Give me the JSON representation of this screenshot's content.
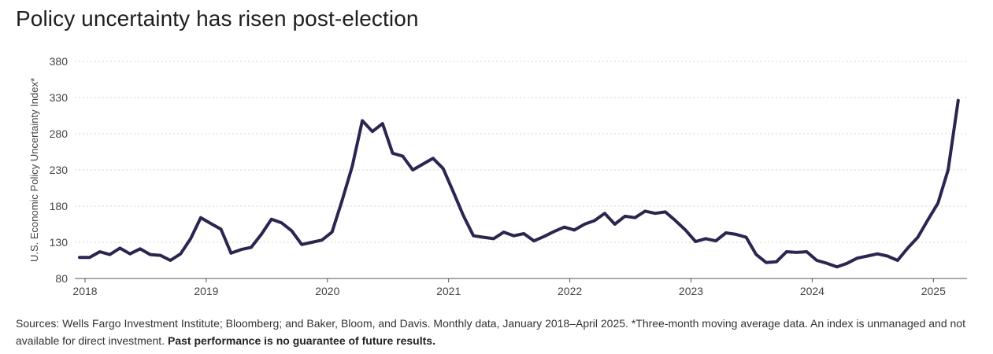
{
  "title": "Policy uncertainty has risen post-election",
  "footnote": {
    "text": "Sources: Wells Fargo Investment Institute; Bloomberg; and Baker, Bloom, and Davis. Monthly data, January 2018–April 2025. *Three-month moving average data. An index is unmanaged and not available for direct investment.",
    "bold": "Past performance is no guarantee of future results."
  },
  "colors": {
    "line": "#2b2550",
    "grid": "#d6d6d6",
    "axis": "#555555"
  },
  "chart_data": {
    "type": "line",
    "ylabel": "U.S. Economic Policy Uncertainty Index*",
    "xlabel": "",
    "ylim": [
      80,
      380
    ],
    "yticks": [
      80,
      130,
      180,
      230,
      280,
      330,
      380
    ],
    "grid": "horizontal-dashed",
    "xticks": [
      "2018",
      "2019",
      "2020",
      "2021",
      "2022",
      "2023",
      "2024",
      "2025"
    ],
    "x_start": "2018-01",
    "x_end": "2025-04",
    "series": [
      {
        "values": [
          109,
          109,
          117,
          113,
          122,
          114,
          121,
          113,
          112,
          105,
          114,
          135,
          164,
          156,
          148,
          115,
          120,
          123,
          141,
          162,
          157,
          146,
          127,
          130,
          133,
          144,
          188,
          235,
          298,
          283,
          294,
          253,
          249,
          230,
          238,
          246,
          232,
          200,
          167,
          139,
          137,
          135,
          144,
          139,
          142,
          132,
          138,
          145,
          151,
          147,
          155,
          160,
          170,
          155,
          166,
          164,
          173,
          170,
          172,
          160,
          147,
          131,
          135,
          132,
          143,
          141,
          137,
          113,
          102,
          103,
          117,
          116,
          117,
          105,
          101,
          96,
          101,
          108,
          111,
          114,
          111,
          105,
          122,
          137,
          161,
          184,
          230,
          326
        ]
      }
    ]
  }
}
